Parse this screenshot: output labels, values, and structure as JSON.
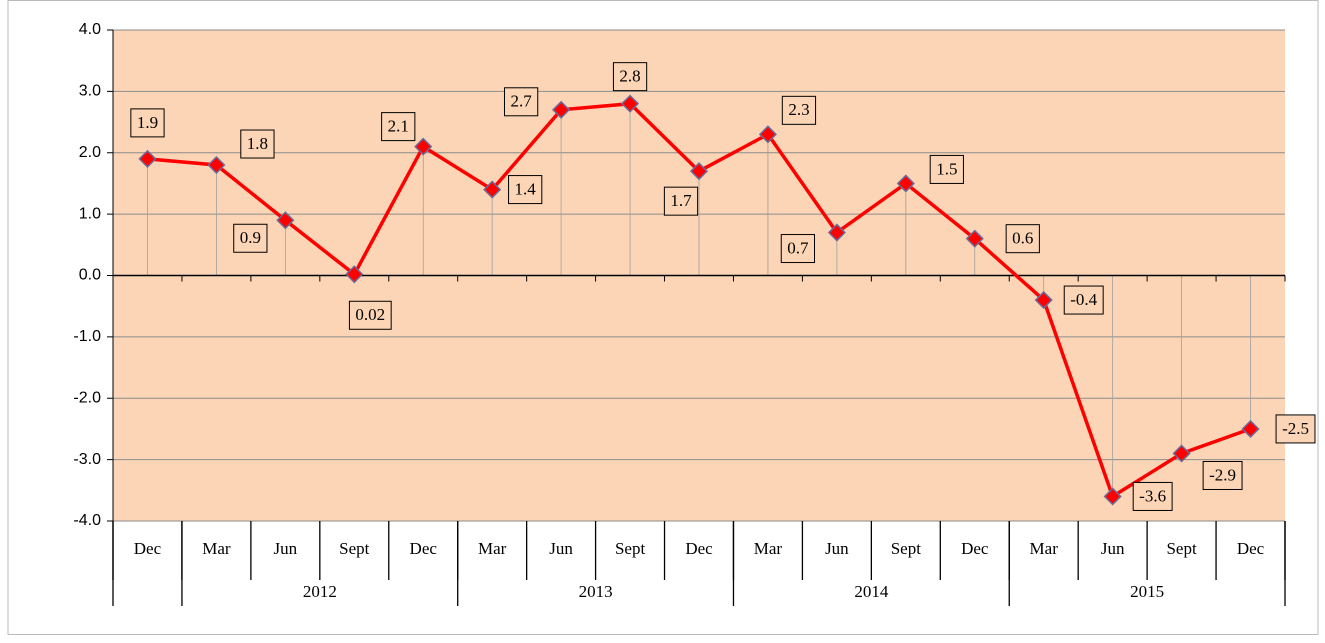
{
  "chart_data": {
    "type": "line",
    "categories": [
      "Dec",
      "Mar",
      "Jun",
      "Sept",
      "Dec",
      "Mar",
      "Jun",
      "Sept",
      "Dec",
      "Mar",
      "Jun",
      "Sept",
      "Dec",
      "Mar",
      "Jun",
      "Sept",
      "Dec"
    ],
    "groups": [
      {
        "label": null,
        "span": 1
      },
      {
        "label": "2012",
        "span": 4
      },
      {
        "label": "2013",
        "span": 4
      },
      {
        "label": "2014",
        "span": 4
      },
      {
        "label": "2015",
        "span": 4
      }
    ],
    "series": [
      {
        "color": "#ff0000",
        "marker_color": "#ff0000",
        "values": [
          1.9,
          1.8,
          0.9,
          0.02,
          2.1,
          1.4,
          2.7,
          2.8,
          1.7,
          2.3,
          0.7,
          1.5,
          0.6,
          -0.4,
          -3.6,
          -2.9,
          -2.5
        ]
      }
    ],
    "ylim": [
      -4,
      4
    ],
    "yticks": [
      {
        "value": -4,
        "label": "-4.0"
      },
      {
        "value": -3,
        "label": "-3.0"
      },
      {
        "value": -2,
        "label": "-2.0"
      },
      {
        "value": -1,
        "label": "-1.0"
      },
      {
        "value": 0,
        "label": "0.0"
      },
      {
        "value": 1,
        "label": "1.0"
      },
      {
        "value": 2,
        "label": "2.0"
      },
      {
        "value": 3,
        "label": "3.0"
      },
      {
        "value": 4,
        "label": "4.0"
      }
    ],
    "grid": true,
    "background": "#fbd5b5"
  }
}
